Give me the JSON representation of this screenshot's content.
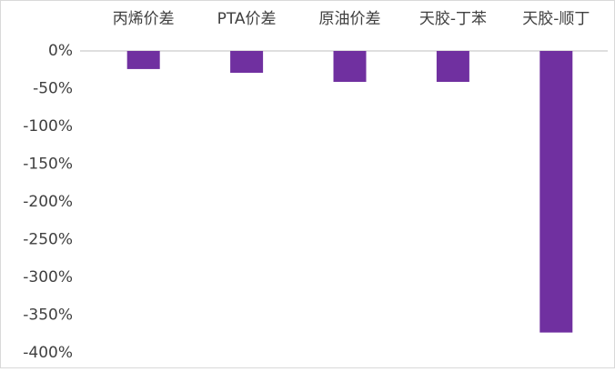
{
  "chart_data": {
    "type": "bar",
    "categories": [
      "丙烯价差",
      "PTA价差",
      "原油价差",
      "天胶-丁苯",
      "天胶-顺丁"
    ],
    "values": [
      -24,
      -29,
      -41,
      -41,
      -373
    ],
    "color": "#7030a0",
    "ylim": [
      -400,
      0
    ],
    "yticks": [
      {
        "value": 0,
        "label": "0%"
      },
      {
        "value": -50,
        "label": "-50%"
      },
      {
        "value": -100,
        "label": "-100%"
      },
      {
        "value": -150,
        "label": "-150%"
      },
      {
        "value": -200,
        "label": "-200%"
      },
      {
        "value": -250,
        "label": "-250%"
      },
      {
        "value": -300,
        "label": "-300%"
      },
      {
        "value": -350,
        "label": "-350%"
      },
      {
        "value": -400,
        "label": "-400%"
      }
    ],
    "grid": false
  }
}
